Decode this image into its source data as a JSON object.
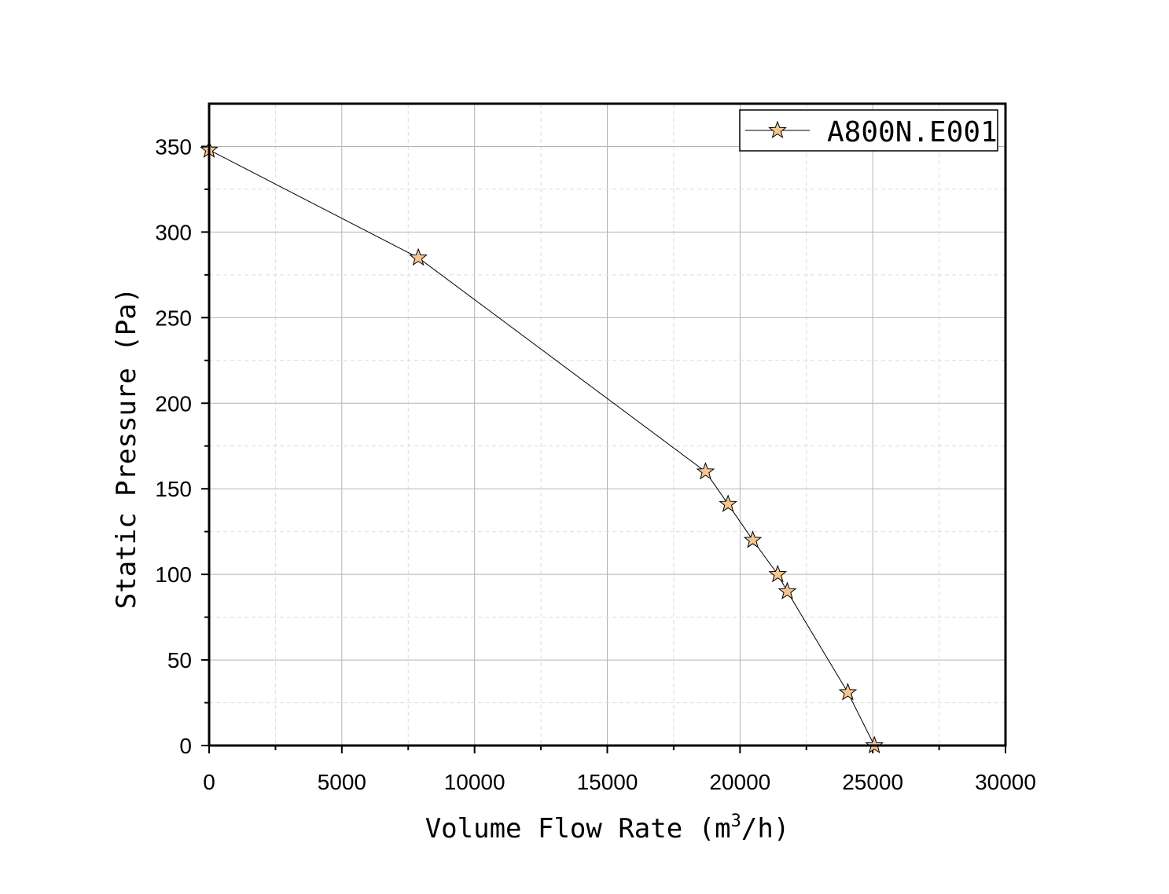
{
  "chart_data": {
    "type": "line",
    "xlabel": "Volume Flow Rate (m",
    "xlabel_sup": "3",
    "xlabel_tail": "/h)",
    "ylabel": "Static Pressure (Pa)",
    "xlim": [
      0,
      30000
    ],
    "ylim": [
      0,
      375
    ],
    "xticks": [
      0,
      5000,
      10000,
      15000,
      20000,
      25000,
      30000
    ],
    "xtick_labels": [
      "0",
      "5000",
      "10000",
      "15000",
      "20000",
      "25000",
      "30000"
    ],
    "yticks": [
      0,
      50,
      100,
      150,
      200,
      250,
      300,
      350
    ],
    "ytick_labels": [
      "0",
      "50",
      "100",
      "150",
      "200",
      "250",
      "300",
      "350"
    ],
    "grid": true,
    "legend_position": "top-right",
    "marker": "star",
    "colors": {
      "marker_fill": "#f5c58f",
      "line": "#000000",
      "grid": "#b4b4b4"
    },
    "series": [
      {
        "name": "A800N.E001",
        "x": [
          0,
          7880,
          18700,
          19550,
          20480,
          21420,
          21780,
          24060,
          25060
        ],
        "y": [
          348,
          285,
          160,
          141,
          120,
          100,
          90,
          31,
          0
        ]
      }
    ]
  }
}
